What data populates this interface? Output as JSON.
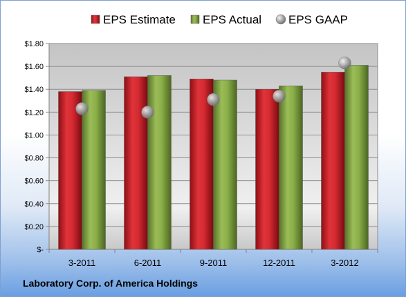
{
  "chart_data": {
    "type": "bar",
    "categories": [
      "3-2011",
      "6-2011",
      "9-2011",
      "12-2011",
      "3-2012"
    ],
    "series": [
      {
        "name": "EPS Estimate",
        "kind": "bar",
        "color": "#cc1f27",
        "values": [
          1.38,
          1.51,
          1.49,
          1.4,
          1.55
        ]
      },
      {
        "name": "EPS Actual",
        "kind": "bar",
        "color": "#7d9f3c",
        "values": [
          1.39,
          1.52,
          1.48,
          1.43,
          1.61
        ]
      },
      {
        "name": "EPS GAAP",
        "kind": "scatter",
        "color": "#a0a0a0",
        "values": [
          1.23,
          1.2,
          1.31,
          1.34,
          1.63
        ]
      }
    ],
    "ylim": [
      0,
      1.8
    ],
    "yticks": [
      0,
      0.2,
      0.4,
      0.6,
      0.8,
      1.0,
      1.2,
      1.4,
      1.6,
      1.8
    ],
    "ytick_labels": [
      "$-",
      "$0.20",
      "$0.40",
      "$0.60",
      "$0.80",
      "$1.00",
      "$1.20",
      "$1.40",
      "$1.60",
      "$1.80"
    ],
    "grid": true,
    "legend_position": "top",
    "footer": "Laboratory Corp. of America Holdings"
  }
}
